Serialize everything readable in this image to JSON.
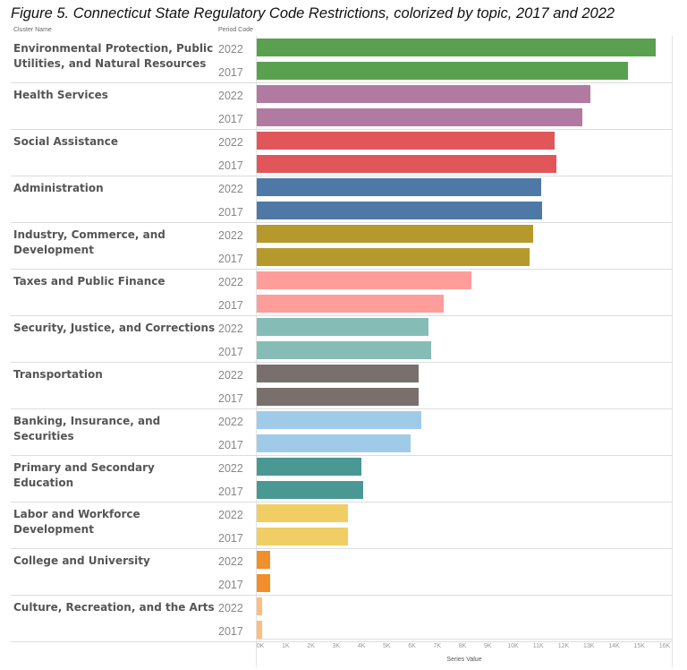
{
  "chart_data": {
    "type": "bar",
    "title": "Figure 5. Connecticut State Regulatory Code Restrictions, colorized by topic, 2017 and 2022",
    "column_headers": [
      "Cluster Name",
      "Period Code"
    ],
    "xlabel": "Series Value",
    "xlim": [
      0,
      16000
    ],
    "ticks": [
      "0K",
      "1K",
      "2K",
      "3K",
      "4K",
      "5K",
      "6K",
      "7K",
      "8K",
      "9K",
      "10K",
      "11K",
      "12K",
      "13K",
      "14K",
      "15K",
      "16K"
    ],
    "series_names": [
      "2022",
      "2017"
    ],
    "clusters": [
      {
        "name": "Environmental Protection, Public Utilities, and Natural Resources",
        "color": "#59a14f",
        "values": {
          "2022": 15800,
          "2017": 14700
        }
      },
      {
        "name": "Health Services",
        "color": "#b07aa1",
        "values": {
          "2022": 13200,
          "2017": 12900
        }
      },
      {
        "name": "Social Assistance",
        "color": "#e15759",
        "values": {
          "2022": 11800,
          "2017": 11850
        }
      },
      {
        "name": "Administration",
        "color": "#4e79a7",
        "values": {
          "2022": 11250,
          "2017": 11300
        }
      },
      {
        "name": "Industry, Commerce, and Development",
        "color": "#b6992d",
        "values": {
          "2022": 10950,
          "2017": 10800
        }
      },
      {
        "name": "Taxes and Public Finance",
        "color": "#ff9d9a",
        "values": {
          "2022": 8500,
          "2017": 7400
        }
      },
      {
        "name": "Security, Justice, and Corrections",
        "color": "#86bcb6",
        "values": {
          "2022": 6800,
          "2017": 6900
        }
      },
      {
        "name": "Transportation",
        "color": "#79706e",
        "values": {
          "2022": 6400,
          "2017": 6420
        }
      },
      {
        "name": "Banking, Insurance, and Securities",
        "color": "#a0cbe8",
        "values": {
          "2022": 6500,
          "2017": 6100
        }
      },
      {
        "name": "Primary and Secondary Education",
        "color": "#499894",
        "values": {
          "2022": 4150,
          "2017": 4200
        }
      },
      {
        "name": "Labor and Workforce Development",
        "color": "#f1ce63",
        "values": {
          "2022": 3620,
          "2017": 3620
        }
      },
      {
        "name": "College and University",
        "color": "#f28e2b",
        "values": {
          "2022": 520,
          "2017": 520
        }
      },
      {
        "name": "Culture, Recreation, and the Arts",
        "color": "#ffbe7d",
        "values": {
          "2022": 220,
          "2017": 220
        }
      }
    ]
  }
}
